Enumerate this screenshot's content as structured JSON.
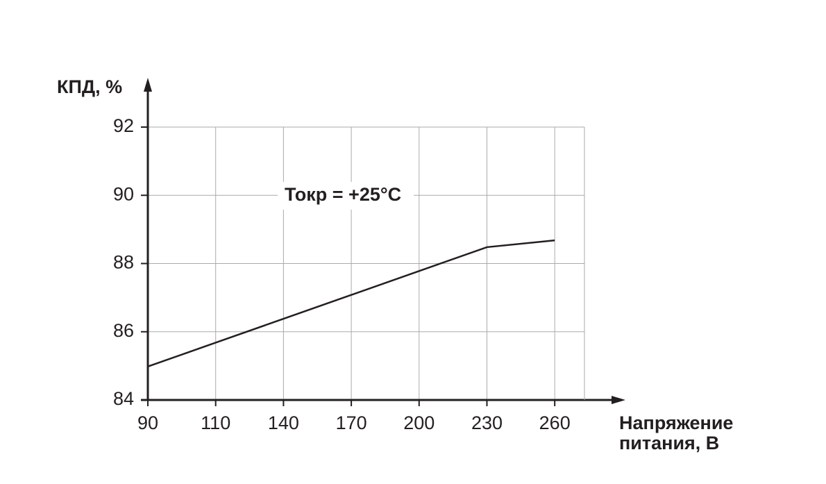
{
  "chart_data": {
    "type": "line",
    "ylabel": "КПД, %",
    "xlabel": [
      "Напряжение",
      "питания, В"
    ],
    "annotation": "Токр = +25°C",
    "categories": [
      "90",
      "110",
      "140",
      "170",
      "200",
      "230",
      "260"
    ],
    "series": [
      {
        "name": "КПД",
        "color": "#231f20",
        "values": [
          84.98,
          85.68,
          86.38,
          87.08,
          87.78,
          88.48,
          88.68
        ]
      }
    ],
    "ylim": [
      84,
      92
    ],
    "yticks": [
      84,
      86,
      88,
      90,
      92
    ],
    "grid": true
  }
}
